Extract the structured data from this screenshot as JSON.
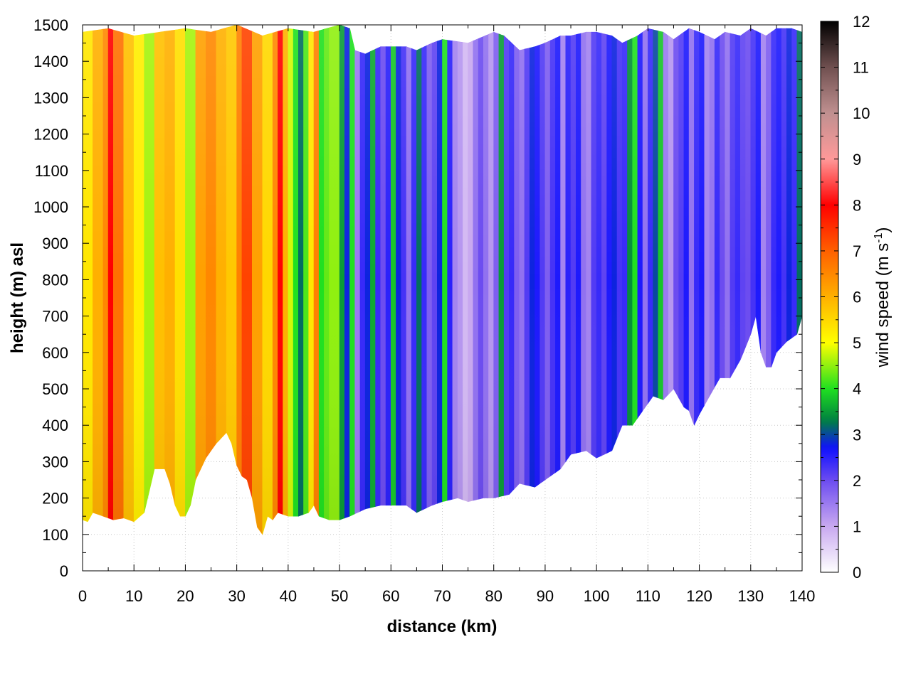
{
  "chart_data": {
    "type": "heatmap",
    "title": "",
    "xlabel": "distance (km)",
    "ylabel": "height (m) asl",
    "xlim": [
      0,
      140
    ],
    "ylim": [
      0,
      1500
    ],
    "xticks": [
      0,
      10,
      20,
      30,
      40,
      50,
      60,
      70,
      80,
      90,
      100,
      110,
      120,
      130,
      140
    ],
    "yticks": [
      0,
      100,
      200,
      300,
      400,
      500,
      600,
      700,
      800,
      900,
      1000,
      1100,
      1200,
      1300,
      1400,
      1500
    ],
    "grid": true,
    "colorbar": {
      "label_main": "wind speed (m s",
      "label_sup": "-1",
      "label_end": ")",
      "range": [
        0,
        12
      ],
      "ticks": [
        0,
        1,
        2,
        3,
        4,
        5,
        6,
        7,
        8,
        9,
        10,
        11,
        12
      ],
      "stops": [
        {
          "v": 0,
          "c": "#ffffff"
        },
        {
          "v": 1,
          "c": "#c8a8f0"
        },
        {
          "v": 2,
          "c": "#6c4cf0"
        },
        {
          "v": 2.7,
          "c": "#1010ff"
        },
        {
          "v": 3.3,
          "c": "#008040"
        },
        {
          "v": 4,
          "c": "#20e020"
        },
        {
          "v": 5,
          "c": "#ffff00"
        },
        {
          "v": 6,
          "c": "#ffb000"
        },
        {
          "v": 7,
          "c": "#ff6000"
        },
        {
          "v": 8,
          "c": "#ff0000"
        },
        {
          "v": 9,
          "c": "#ff9999"
        },
        {
          "v": 10,
          "c": "#c09090"
        },
        {
          "v": 11,
          "c": "#705050"
        },
        {
          "v": 12,
          "c": "#000000"
        }
      ]
    },
    "terrain_height": {
      "x": [
        0,
        1,
        2,
        4,
        6,
        8,
        10,
        12,
        14,
        16,
        17,
        18,
        19,
        20,
        21,
        22,
        24,
        26,
        28,
        29,
        30,
        31,
        32,
        33,
        34,
        35,
        36,
        37,
        38,
        40,
        42,
        44,
        45,
        46,
        48,
        50,
        52,
        55,
        58,
        60,
        63,
        65,
        68,
        70,
        73,
        75,
        78,
        80,
        83,
        85,
        88,
        90,
        93,
        95,
        98,
        100,
        103,
        105,
        107,
        109,
        111,
        113,
        115,
        117,
        118,
        119,
        120,
        122,
        124,
        126,
        128,
        130,
        131,
        132,
        133,
        134,
        135,
        137,
        139,
        140
      ],
      "y": [
        140,
        135,
        160,
        150,
        140,
        145,
        135,
        160,
        280,
        280,
        240,
        180,
        150,
        150,
        180,
        250,
        310,
        350,
        380,
        350,
        290,
        260,
        250,
        200,
        120,
        100,
        150,
        140,
        160,
        150,
        150,
        160,
        180,
        150,
        140,
        140,
        150,
        170,
        180,
        180,
        180,
        160,
        180,
        190,
        200,
        190,
        200,
        200,
        210,
        240,
        230,
        250,
        280,
        320,
        330,
        310,
        330,
        400,
        400,
        440,
        480,
        470,
        500,
        450,
        440,
        400,
        430,
        480,
        530,
        530,
        580,
        650,
        700,
        600,
        560,
        560,
        600,
        630,
        650,
        700
      ]
    },
    "top_height": {
      "x": [
        0,
        5,
        10,
        15,
        20,
        25,
        30,
        35,
        40,
        45,
        50,
        52,
        53,
        55,
        58,
        60,
        63,
        65,
        68,
        70,
        75,
        80,
        82,
        85,
        88,
        90,
        93,
        95,
        98,
        100,
        103,
        105,
        108,
        110,
        113,
        115,
        118,
        120,
        123,
        125,
        128,
        130,
        133,
        135,
        138,
        140
      ],
      "y": [
        1480,
        1490,
        1470,
        1480,
        1490,
        1480,
        1500,
        1470,
        1490,
        1480,
        1500,
        1490,
        1430,
        1420,
        1440,
        1440,
        1440,
        1430,
        1450,
        1460,
        1450,
        1480,
        1470,
        1430,
        1440,
        1450,
        1470,
        1470,
        1480,
        1480,
        1470,
        1450,
        1470,
        1490,
        1480,
        1460,
        1490,
        1480,
        1460,
        1480,
        1470,
        1490,
        1470,
        1490,
        1490,
        1480
      ]
    },
    "columns": {
      "x": [
        0,
        2,
        4,
        5,
        6,
        8,
        10,
        12,
        14,
        16,
        18,
        20,
        22,
        24,
        26,
        28,
        30,
        31,
        33,
        35,
        37,
        38,
        39,
        40,
        41,
        42,
        43,
        44,
        45,
        46,
        47,
        48,
        49,
        50,
        51,
        52,
        53,
        54,
        55,
        56,
        57,
        58,
        59,
        60,
        61,
        62,
        63,
        64,
        65,
        66,
        67,
        68,
        69,
        70,
        71,
        72,
        73,
        74,
        75,
        76,
        77,
        78,
        79,
        80,
        81,
        82,
        83,
        84,
        85,
        86,
        87,
        88,
        89,
        90,
        91,
        92,
        93,
        94,
        95,
        96,
        97,
        98,
        99,
        100,
        101,
        102,
        103,
        104,
        105,
        106,
        107,
        108,
        109,
        110,
        111,
        112,
        113,
        114,
        115,
        116,
        117,
        118,
        119,
        120,
        121,
        122,
        123,
        124,
        125,
        126,
        127,
        128,
        129,
        130,
        131,
        132,
        133,
        134,
        135,
        136,
        137,
        138,
        139,
        140
      ],
      "speed": [
        5.3,
        6.0,
        6.5,
        8.0,
        6.8,
        5.8,
        5.2,
        4.6,
        5.8,
        6.0,
        5.4,
        4.6,
        6.2,
        6.5,
        6.0,
        5.7,
        6.6,
        7.3,
        6.2,
        5.5,
        6.5,
        8.0,
        6.0,
        4.8,
        4.0,
        3.2,
        4.2,
        5.3,
        6.6,
        4.0,
        4.3,
        4.5,
        4.5,
        3.5,
        2.8,
        4.0,
        1.5,
        2.4,
        2.8,
        3.6,
        2.4,
        2.0,
        2.5,
        3.8,
        2.8,
        2.3,
        1.6,
        2.4,
        3.2,
        2.4,
        1.8,
        2.1,
        2.8,
        4.0,
        2.5,
        1.4,
        1.2,
        0.8,
        1.0,
        1.6,
        2.0,
        1.6,
        1.2,
        1.8,
        3.5,
        2.2,
        2.4,
        1.8,
        1.6,
        2.2,
        2.8,
        2.6,
        2.2,
        1.8,
        2.3,
        2.6,
        1.4,
        2.5,
        2.2,
        2.6,
        1.6,
        1.4,
        2.2,
        2.4,
        2.1,
        2.6,
        2.8,
        2.3,
        2.4,
        3.4,
        4.0,
        2.6,
        1.6,
        2.4,
        3.0,
        3.8,
        1.5,
        1.2,
        2.0,
        2.2,
        2.6,
        1.6,
        2.4,
        2.6,
        1.4,
        1.6,
        2.4,
        2.0,
        1.6,
        2.2,
        2.4,
        2.1,
        2.0,
        2.3,
        2.6,
        1.4,
        1.8,
        2.4,
        2.6,
        2.3,
        2.8,
        2.4,
        3.2,
        3.4
      ]
    }
  }
}
